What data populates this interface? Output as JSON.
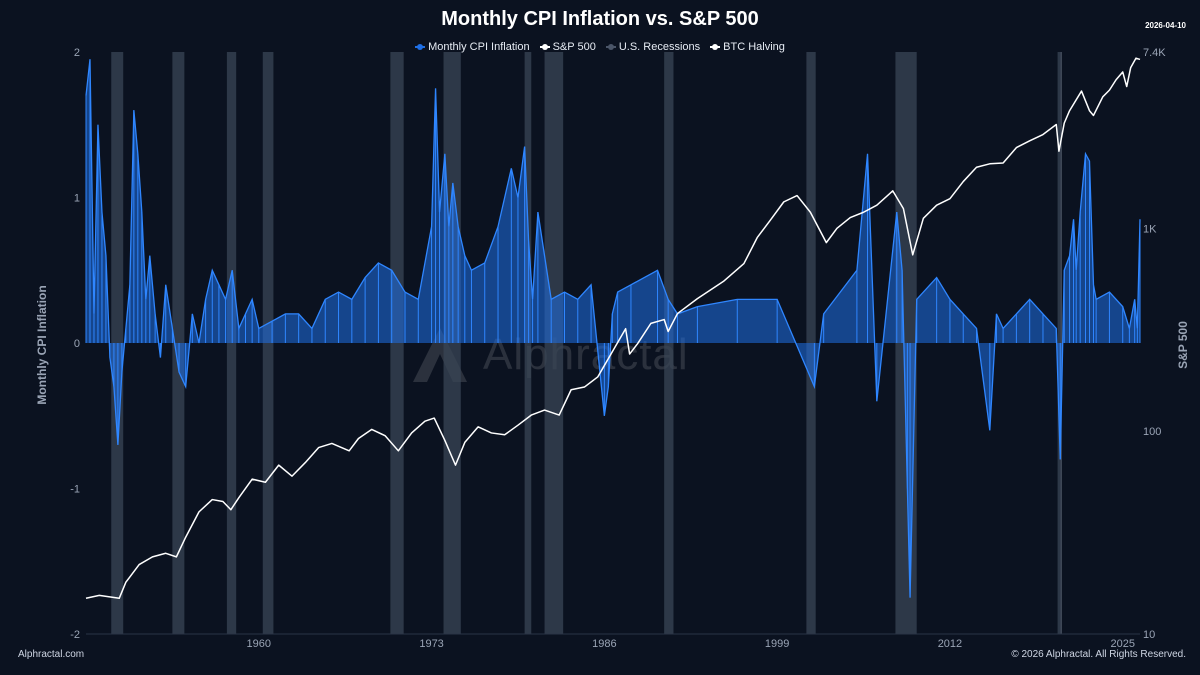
{
  "header": {
    "title": "Monthly CPI Inflation vs. S&P 500",
    "date": "2026-04-10"
  },
  "legend": [
    {
      "label": "Monthly CPI Inflation",
      "color": "#1f6fe5"
    },
    {
      "label": "S&P 500",
      "color": "#ffffff"
    },
    {
      "label": "U.S. Recessions",
      "color": "#3a4556"
    },
    {
      "label": "BTC Halving",
      "color": "#ffffff"
    }
  ],
  "footer": {
    "left": "Alphractal.com",
    "right": "© 2026 Alphractal. All Rights Reserved."
  },
  "watermark": "Alphractal",
  "chart_data": {
    "type": "line",
    "title": "Monthly CPI Inflation vs. S&P 500",
    "x_range": [
      1947,
      2026.3
    ],
    "x_ticks": [
      1960,
      1973,
      1986,
      1999,
      2012,
      2025
    ],
    "y_left": {
      "label": "Monthly CPI Inflation",
      "range": [
        -2,
        2
      ],
      "ticks": [
        2,
        1,
        0,
        -1,
        -2
      ]
    },
    "y_right": {
      "label": "S&P 500",
      "scale": "log",
      "range": [
        10,
        7400
      ],
      "ticks": [
        {
          "value": 7400,
          "label": "7.4K"
        },
        {
          "value": 1000,
          "label": "1K"
        },
        {
          "value": 100,
          "label": "100"
        },
        {
          "value": 10,
          "label": "10"
        }
      ]
    },
    "recessions": [
      [
        1948.9,
        1949.8
      ],
      [
        1953.5,
        1954.4
      ],
      [
        1957.6,
        1958.3
      ],
      [
        1960.3,
        1961.1
      ],
      [
        1969.9,
        1970.9
      ],
      [
        1973.9,
        1975.2
      ],
      [
        1980.0,
        1980.5
      ],
      [
        1981.5,
        1982.9
      ],
      [
        1990.5,
        1991.2
      ],
      [
        2001.2,
        2001.9
      ],
      [
        2007.9,
        2009.5
      ],
      [
        2020.1,
        2020.3
      ]
    ],
    "btc_halving": [
      2020.37
    ],
    "series": [
      {
        "name": "Monthly CPI Inflation",
        "color": "#1f6fe5",
        "x": [
          1947.0,
          1947.3,
          1947.6,
          1947.9,
          1948.2,
          1948.5,
          1948.8,
          1949.1,
          1949.4,
          1949.7,
          1950.0,
          1950.3,
          1950.6,
          1950.9,
          1951.2,
          1951.5,
          1951.8,
          1952.2,
          1952.6,
          1953.0,
          1953.5,
          1954.0,
          1954.5,
          1955.0,
          1955.5,
          1956.0,
          1956.5,
          1957.0,
          1957.5,
          1958.0,
          1958.5,
          1959.0,
          1959.5,
          1960.0,
          1961.0,
          1962.0,
          1963.0,
          1964.0,
          1965.0,
          1966.0,
          1967.0,
          1968.0,
          1969.0,
          1970.0,
          1971.0,
          1972.0,
          1973.0,
          1973.3,
          1973.6,
          1974.0,
          1974.3,
          1974.6,
          1975.0,
          1975.5,
          1976.0,
          1977.0,
          1978.0,
          1979.0,
          1979.5,
          1980.0,
          1980.3,
          1980.6,
          1981.0,
          1982.0,
          1983.0,
          1984.0,
          1985.0,
          1986.0,
          1986.3,
          1986.6,
          1987.0,
          1988.0,
          1990.0,
          1990.8,
          1991.5,
          1993.0,
          1996.0,
          1999.0,
          2001.8,
          2002.5,
          2005.0,
          2005.8,
          2006.5,
          2008.0,
          2008.4,
          2008.8,
          2009.0,
          2009.5,
          2011.0,
          2012.0,
          2013.0,
          2014.0,
          2015.0,
          2015.5,
          2016.0,
          2017.0,
          2018.0,
          2019.0,
          2020.0,
          2020.3,
          2020.6,
          2021.0,
          2021.3,
          2021.5,
          2021.8,
          2022.2,
          2022.5,
          2022.8,
          2023.0,
          2024.0,
          2025.0,
          2025.5,
          2025.9,
          2026.1,
          2026.3
        ],
        "values": [
          1.7,
          1.95,
          0.2,
          1.5,
          0.9,
          0.6,
          -0.1,
          -0.3,
          -0.7,
          -0.2,
          0.1,
          0.4,
          1.6,
          1.3,
          0.9,
          0.3,
          0.6,
          0.2,
          -0.1,
          0.4,
          0.1,
          -0.2,
          -0.3,
          0.2,
          0.0,
          0.3,
          0.5,
          0.4,
          0.3,
          0.5,
          0.1,
          0.2,
          0.3,
          0.1,
          0.15,
          0.2,
          0.2,
          0.1,
          0.3,
          0.35,
          0.3,
          0.45,
          0.55,
          0.5,
          0.35,
          0.3,
          0.8,
          1.75,
          0.9,
          1.3,
          0.8,
          1.1,
          0.8,
          0.6,
          0.5,
          0.55,
          0.8,
          1.2,
          1.0,
          1.35,
          0.7,
          0.3,
          0.9,
          0.3,
          0.35,
          0.3,
          0.4,
          -0.5,
          -0.3,
          0.2,
          0.35,
          0.4,
          0.5,
          0.3,
          0.2,
          0.25,
          0.3,
          0.3,
          -0.3,
          0.2,
          0.5,
          1.3,
          -0.4,
          0.9,
          0.5,
          -1.0,
          -1.75,
          0.3,
          0.45,
          0.3,
          0.2,
          0.1,
          -0.6,
          0.2,
          0.1,
          0.2,
          0.3,
          0.2,
          0.1,
          -0.8,
          0.5,
          0.6,
          0.85,
          0.5,
          0.9,
          1.3,
          1.25,
          0.4,
          0.3,
          0.35,
          0.25,
          0.1,
          0.3,
          0.1,
          0.85
        ]
      },
      {
        "name": "S&P 500",
        "color": "#ffffff",
        "x": [
          1947.0,
          1948.0,
          1949.5,
          1950.0,
          1951.0,
          1952.0,
          1953.0,
          1953.8,
          1954.5,
          1955.5,
          1956.5,
          1957.3,
          1957.9,
          1958.5,
          1959.5,
          1960.5,
          1961.5,
          1962.5,
          1963.5,
          1964.5,
          1965.5,
          1966.8,
          1967.5,
          1968.5,
          1969.5,
          1970.5,
          1971.5,
          1972.5,
          1973.2,
          1974.0,
          1974.8,
          1975.5,
          1976.5,
          1977.5,
          1978.5,
          1979.5,
          1980.5,
          1981.5,
          1982.6,
          1983.5,
          1984.5,
          1985.5,
          1986.5,
          1987.6,
          1987.9,
          1988.5,
          1989.5,
          1990.5,
          1990.8,
          1991.5,
          1993.0,
          1995.0,
          1996.5,
          1997.5,
          1998.5,
          1999.5,
          2000.5,
          2001.5,
          2002.7,
          2003.5,
          2004.5,
          2005.5,
          2006.5,
          2007.7,
          2008.5,
          2009.2,
          2010.0,
          2011.0,
          2012.0,
          2013.0,
          2014.0,
          2015.0,
          2016.0,
          2017.0,
          2018.0,
          2019.0,
          2020.0,
          2020.2,
          2020.6,
          2021.0,
          2021.9,
          2022.5,
          2022.8,
          2023.5,
          2024.0,
          2024.5,
          2025.0,
          2025.3,
          2025.6,
          2026.0,
          2026.3
        ],
        "values": [
          15,
          15.5,
          15,
          18,
          22,
          24,
          25,
          24,
          30,
          40,
          46,
          45,
          41,
          47,
          58,
          56,
          68,
          60,
          70,
          83,
          87,
          80,
          92,
          102,
          95,
          80,
          98,
          112,
          116,
          90,
          68,
          88,
          105,
          98,
          96,
          107,
          120,
          127,
          120,
          160,
          165,
          185,
          240,
          320,
          240,
          270,
          340,
          355,
          310,
          380,
          450,
          550,
          670,
          900,
          1100,
          1350,
          1450,
          1200,
          850,
          1000,
          1130,
          1200,
          1300,
          1530,
          1250,
          740,
          1120,
          1300,
          1400,
          1700,
          2000,
          2080,
          2100,
          2500,
          2700,
          2900,
          3250,
          2400,
          3300,
          3800,
          4750,
          3800,
          3600,
          4450,
          4800,
          5400,
          5900,
          5000,
          6200,
          6900,
          6800
        ]
      }
    ]
  }
}
